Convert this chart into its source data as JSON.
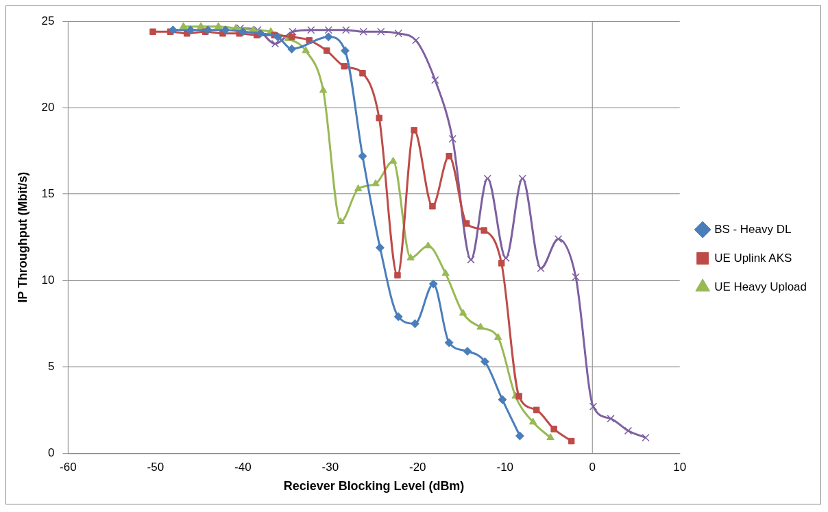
{
  "chart_data": {
    "type": "line",
    "xlabel": "Reciever Blocking Level (dBm)",
    "ylabel": "IP Throughput (Mbit/s)",
    "xlim": [
      -60,
      10
    ],
    "xticks": [
      -60,
      -50,
      -40,
      -30,
      -20,
      -10,
      0,
      10
    ],
    "ylim": [
      0,
      25
    ],
    "yticks": [
      0,
      5,
      10,
      15,
      20,
      25
    ],
    "grid": "y",
    "legend": "right",
    "ref_lines": [
      {
        "axis": "x",
        "value": 0,
        "color": "#868686"
      }
    ],
    "series": [
      {
        "name": "BS - Heavy DL",
        "color": "#4a7ebb",
        "marker": "diamond",
        "x": [
          -48,
          -46,
          -44,
          -42,
          -40,
          -38,
          -36,
          -34.4,
          -30.2,
          -28.3,
          -26.3,
          -24.3,
          -22.2,
          -20.3,
          -18.2,
          -16.4,
          -14.3,
          -12.3,
          -10.3,
          -8.3
        ],
        "values": [
          24.5,
          24.5,
          24.5,
          24.5,
          24.4,
          24.3,
          24.1,
          23.4,
          24.1,
          23.3,
          17.2,
          11.9,
          7.9,
          7.5,
          9.8,
          6.4,
          5.9,
          5.3,
          3.1,
          1.0
        ]
      },
      {
        "name": "UE Uplink AKS",
        "color": "#be4b48",
        "marker": "square",
        "x": [
          -50.3,
          -48.3,
          -46.4,
          -44.3,
          -42.3,
          -40.4,
          -38.4,
          -36.4,
          -34.4,
          -32.4,
          -30.4,
          -28.4,
          -26.3,
          -24.4,
          -22.3,
          -20.4,
          -18.3,
          -16.4,
          -14.4,
          -12.4,
          -10.4,
          -8.4,
          -6.4,
          -4.4,
          -2.4
        ],
        "values": [
          24.4,
          24.4,
          24.3,
          24.4,
          24.3,
          24.3,
          24.2,
          24.2,
          24.1,
          23.9,
          23.3,
          22.4,
          22.0,
          19.4,
          10.3,
          18.7,
          14.3,
          17.2,
          13.3,
          12.9,
          11.0,
          3.3,
          2.5,
          1.4,
          0.7
        ]
      },
      {
        "name": "UE Heavy Upload",
        "color": "#98b954",
        "marker": "triangle",
        "x": [
          -46.8,
          -44.8,
          -42.8,
          -40.8,
          -38.8,
          -36.8,
          -34.8,
          -32.8,
          -30.8,
          -28.8,
          -26.8,
          -24.8,
          -22.8,
          -20.8,
          -18.8,
          -16.8,
          -14.8,
          -12.8,
          -10.8,
          -8.8,
          -6.8,
          -4.8
        ],
        "values": [
          24.7,
          24.7,
          24.7,
          24.6,
          24.5,
          24.4,
          24.0,
          23.3,
          21.0,
          13.4,
          15.3,
          15.6,
          16.9,
          11.3,
          12.0,
          10.4,
          8.1,
          7.3,
          6.7,
          3.3,
          1.8,
          0.9
        ]
      },
      {
        "color": "#7d60a0",
        "marker": "cross",
        "x": [
          -40.3,
          -38.3,
          -36.3,
          -34.3,
          -32.2,
          -30.2,
          -28.2,
          -26.2,
          -24.2,
          -22.2,
          -20.2,
          -18.0,
          -16.0,
          -13.9,
          -12.0,
          -9.9,
          -8.0,
          -5.9,
          -3.9,
          -1.9,
          0.1,
          2.1,
          4.1,
          6.1
        ],
        "values": [
          24.6,
          24.5,
          23.7,
          24.4,
          24.5,
          24.5,
          24.5,
          24.4,
          24.4,
          24.3,
          23.9,
          21.6,
          18.2,
          11.2,
          15.9,
          11.3,
          15.9,
          10.7,
          12.4,
          10.2,
          2.7,
          2.0,
          1.3,
          0.9
        ]
      }
    ]
  }
}
